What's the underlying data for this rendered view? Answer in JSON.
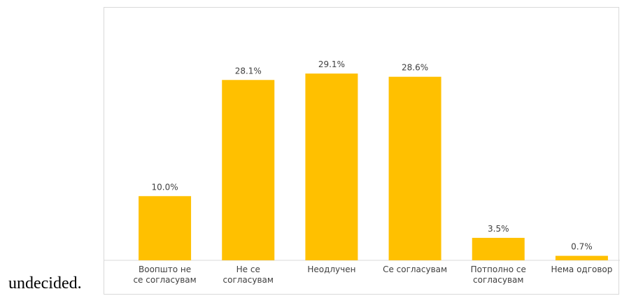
{
  "document": {
    "caption_fragment": "undecided."
  },
  "colors": {
    "bar": "#FFC000",
    "axis": "#d9d9d9",
    "text": "#404040"
  },
  "chart_data": {
    "type": "bar",
    "categories": [
      [
        "Воопшто не",
        "се согласувам"
      ],
      [
        "Не се",
        "согласувам"
      ],
      [
        "Неодлучен"
      ],
      [
        "Се согласувам"
      ],
      [
        "Потполно се",
        "согласувам"
      ],
      [
        "Нема одговор"
      ]
    ],
    "values": [
      10.0,
      28.1,
      29.1,
      28.6,
      3.5,
      0.7
    ],
    "value_labels": [
      "10.0%",
      "28.1%",
      "29.1%",
      "28.6%",
      "3.5%",
      "0.7%"
    ],
    "title": "",
    "xlabel": "",
    "ylabel": "",
    "ylim": [
      0,
      35
    ],
    "grid": false,
    "legend": "none"
  }
}
